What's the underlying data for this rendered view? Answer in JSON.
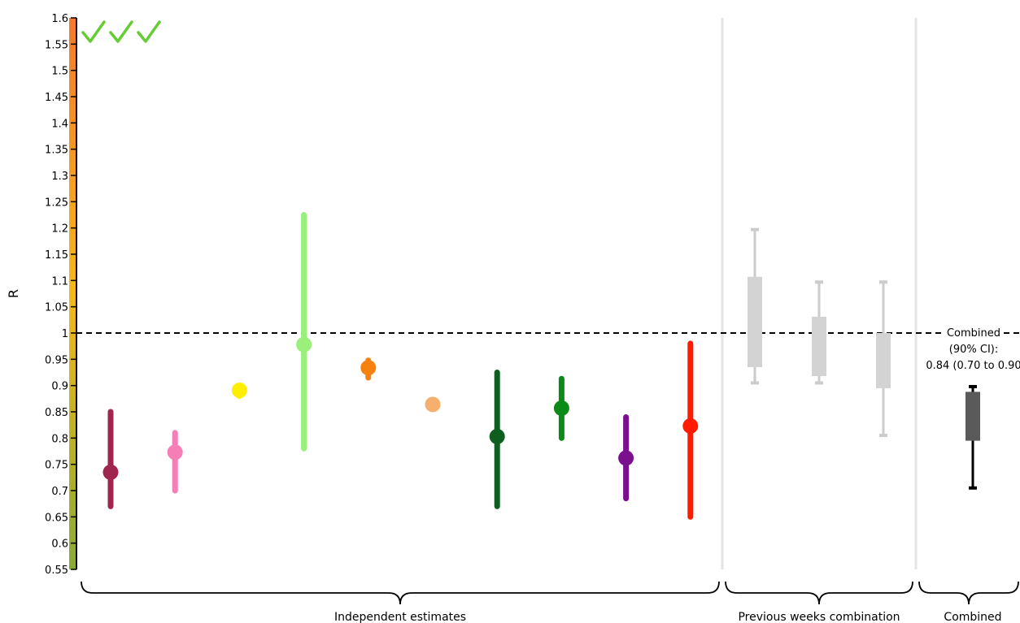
{
  "chart_data": {
    "type": "scatter",
    "ylabel": "R",
    "ylim": [
      0.55,
      1.6
    ],
    "yticks": [
      "0.55",
      "0.6",
      "0.65",
      "0.7",
      "0.75",
      "0.8",
      "0.85",
      "0.9",
      "0.95",
      "1",
      "1.05",
      "1.1",
      "1.15",
      "1.2",
      "1.25",
      "1.3",
      "1.35",
      "1.4",
      "1.45",
      "1.5",
      "1.55",
      "1.6"
    ],
    "reference_line": 1.0,
    "colorbar": {
      "from": 0.55,
      "to": 1.6,
      "colors": [
        "#8aaa33",
        "#f5b818",
        "#f57a2a"
      ]
    },
    "check_marks": 3,
    "check_color": "#66cc33",
    "groups": [
      {
        "label": "Independent estimates"
      },
      {
        "label": "Previous weeks combination"
      },
      {
        "label": "Combined"
      }
    ],
    "independent_estimates": [
      {
        "value": 0.735,
        "low": 0.67,
        "high": 0.85,
        "color": "#a0264f"
      },
      {
        "value": 0.773,
        "low": 0.7,
        "high": 0.81,
        "color": "#f57eb6"
      },
      {
        "value": 0.891,
        "low": 0.88,
        "high": 0.9,
        "color": "#ffee00"
      },
      {
        "value": 0.978,
        "low": 0.78,
        "high": 1.225,
        "color": "#99f07a"
      },
      {
        "value": 0.934,
        "low": 0.915,
        "high": 0.948,
        "color": "#f5820f"
      },
      {
        "value": 0.864,
        "low": 0.86,
        "high": 0.87,
        "color": "#f5b06e"
      },
      {
        "value": 0.803,
        "low": 0.67,
        "high": 0.925,
        "color": "#0e5e20"
      },
      {
        "value": 0.857,
        "low": 0.8,
        "high": 0.913,
        "color": "#0a8a16"
      },
      {
        "value": 0.762,
        "low": 0.685,
        "high": 0.84,
        "color": "#7b108f"
      },
      {
        "value": 0.823,
        "low": 0.65,
        "high": 0.98,
        "color": "#ff1a00"
      }
    ],
    "previous_weeks": [
      {
        "box_low": 0.935,
        "box_high": 1.107,
        "whisker_low": 0.905,
        "whisker_high": 1.197
      },
      {
        "box_low": 0.918,
        "box_high": 1.031,
        "whisker_low": 0.905,
        "whisker_high": 1.097
      },
      {
        "box_low": 0.895,
        "box_high": 1.0,
        "whisker_low": 0.805,
        "whisker_high": 1.097
      }
    ],
    "combined": {
      "box_low": 0.795,
      "box_high": 0.888,
      "whisker_low": 0.705,
      "whisker_high": 0.898
    },
    "combined_note": [
      "Combined",
      "(90% CI):",
      "0.84 (0.70 to 0.90"
    ]
  }
}
